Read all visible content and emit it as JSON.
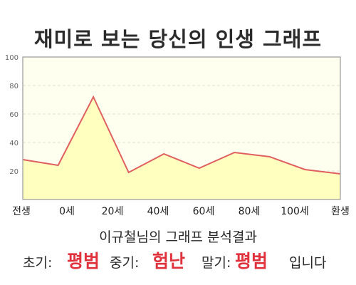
{
  "page": {
    "title": "재미로 보는 당신의 인생 그래프",
    "caption": "이규철님의 그래프 분석결과",
    "result": {
      "early_label": "초기:",
      "early_value": "평범",
      "middle_label": "중기:",
      "middle_value": "험난",
      "late_label": "말기:",
      "late_value": "평범",
      "suffix": "입니다"
    }
  },
  "colors": {
    "area_fill": "#ffffc0",
    "plot_background": "#fffff0",
    "line": "#e06060",
    "highlight": "#e0323c"
  },
  "chart_data": {
    "type": "area",
    "title": "재미로 보는 당신의 인생 그래프",
    "xlabel": "",
    "ylabel": "",
    "ylim": [
      0,
      100
    ],
    "y_ticks": [
      20,
      40,
      60,
      80,
      100
    ],
    "x_tick_labels": [
      "전생",
      "0세",
      "20세",
      "40세",
      "60세",
      "80세",
      "100세",
      "환생"
    ],
    "grid": true,
    "series": [
      {
        "values": [
          28,
          24,
          72,
          19,
          32,
          22,
          33,
          30,
          21,
          18
        ]
      }
    ]
  }
}
